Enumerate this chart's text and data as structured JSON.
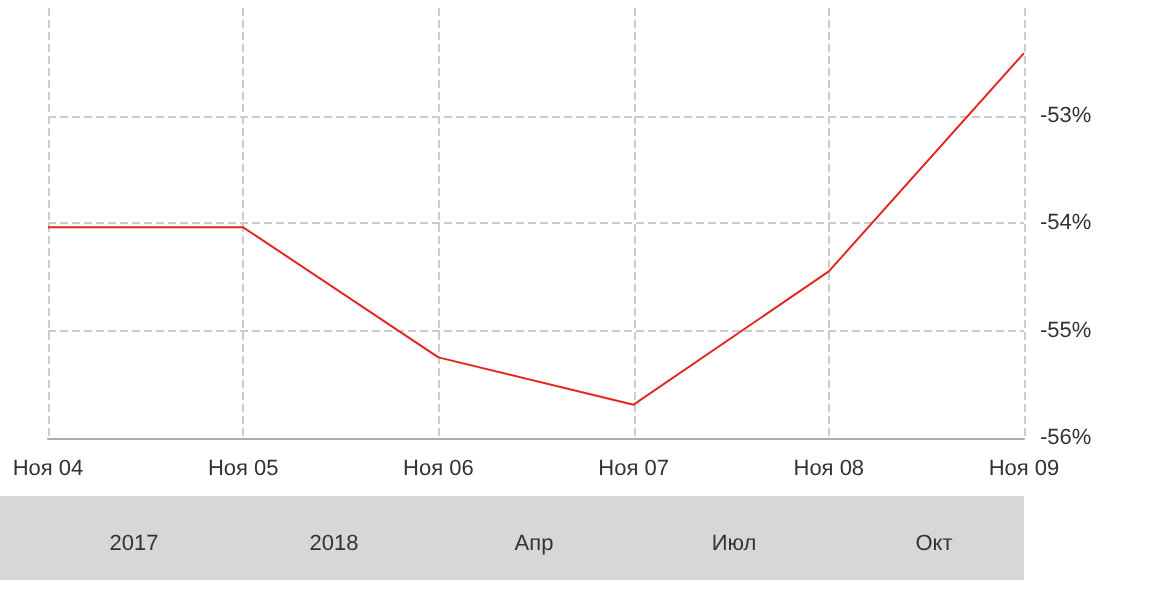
{
  "chart_data": {
    "type": "line",
    "categories": [
      "Ноя 04",
      "Ноя 05",
      "Ноя 06",
      "Ноя 07",
      "Ноя 08",
      "Ноя 09"
    ],
    "series": [
      {
        "color": "#e3241d",
        "values": [
          -54.04,
          -54.04,
          -55.25,
          -55.69,
          -54.45,
          -52.42
        ]
      }
    ],
    "ylim": [
      -56,
      -52
    ],
    "yticks": [
      {
        "value": -56,
        "label": "-56%"
      },
      {
        "value": -55,
        "label": "-55%"
      },
      {
        "value": -54,
        "label": "-54%"
      },
      {
        "value": -53,
        "label": "-53%"
      }
    ],
    "grid": true,
    "marker": "none",
    "line_style": "solid",
    "annotations": [
      "2017",
      "2018",
      "Апр",
      "Июл",
      "Окт"
    ]
  }
}
